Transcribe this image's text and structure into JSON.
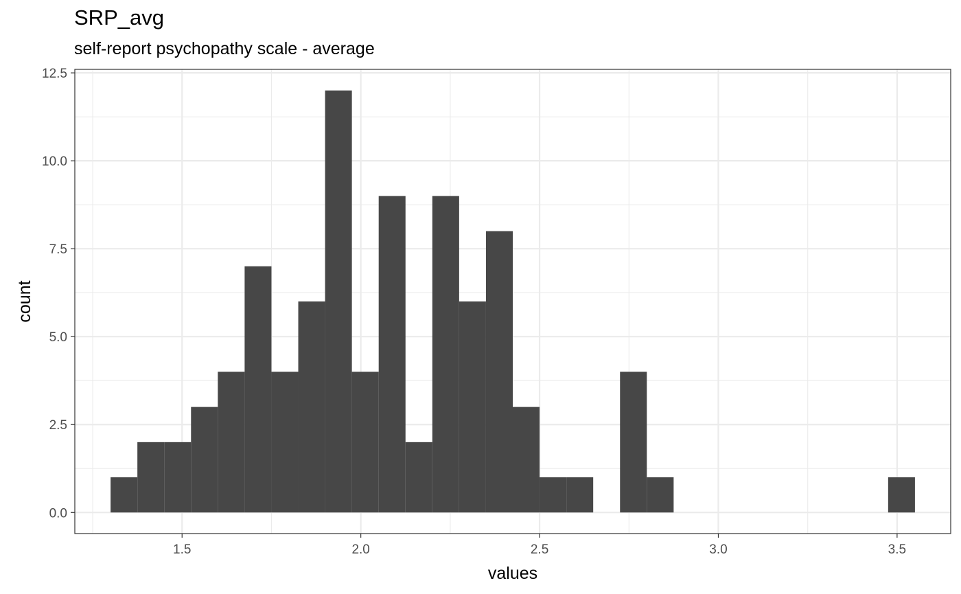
{
  "chart_data": {
    "type": "bar",
    "title": "SRP_avg",
    "subtitle": "self-report psychopathy scale - average",
    "xlabel": "values",
    "ylabel": "count",
    "bins": [
      {
        "x0": 1.3,
        "x1": 1.375,
        "count": 1
      },
      {
        "x0": 1.375,
        "x1": 1.45,
        "count": 2
      },
      {
        "x0": 1.45,
        "x1": 1.525,
        "count": 2
      },
      {
        "x0": 1.525,
        "x1": 1.6,
        "count": 3
      },
      {
        "x0": 1.6,
        "x1": 1.675,
        "count": 4
      },
      {
        "x0": 1.675,
        "x1": 1.75,
        "count": 7
      },
      {
        "x0": 1.75,
        "x1": 1.825,
        "count": 4
      },
      {
        "x0": 1.825,
        "x1": 1.9,
        "count": 6
      },
      {
        "x0": 1.9,
        "x1": 1.975,
        "count": 12
      },
      {
        "x0": 1.975,
        "x1": 2.05,
        "count": 4
      },
      {
        "x0": 2.05,
        "x1": 2.125,
        "count": 9
      },
      {
        "x0": 2.125,
        "x1": 2.2,
        "count": 2
      },
      {
        "x0": 2.2,
        "x1": 2.275,
        "count": 9
      },
      {
        "x0": 2.275,
        "x1": 2.35,
        "count": 6
      },
      {
        "x0": 2.35,
        "x1": 2.425,
        "count": 8
      },
      {
        "x0": 2.425,
        "x1": 2.5,
        "count": 3
      },
      {
        "x0": 2.5,
        "x1": 2.575,
        "count": 1
      },
      {
        "x0": 2.575,
        "x1": 2.65,
        "count": 1
      },
      {
        "x0": 2.65,
        "x1": 2.725,
        "count": 0
      },
      {
        "x0": 2.725,
        "x1": 2.8,
        "count": 4
      },
      {
        "x0": 2.8,
        "x1": 2.875,
        "count": 1
      },
      {
        "x0": 3.475,
        "x1": 3.55,
        "count": 1
      }
    ],
    "x_ticks": [
      "1.5",
      "2.0",
      "2.5",
      "3.0",
      "3.5"
    ],
    "x_tick_values": [
      1.5,
      2.0,
      2.5,
      3.0,
      3.5
    ],
    "y_ticks": [
      "0.0",
      "2.5",
      "5.0",
      "7.5",
      "10.0",
      "12.5"
    ],
    "y_tick_values": [
      0,
      2.5,
      5,
      7.5,
      10,
      12.5
    ],
    "xlim": [
      1.2,
      3.65
    ],
    "ylim": [
      -0.6,
      12.6
    ],
    "grid": true,
    "bar_color": "#474747",
    "grid_color": "#ebebeb",
    "panel_border_color": "#333333"
  }
}
